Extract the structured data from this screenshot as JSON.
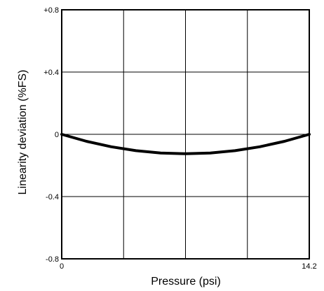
{
  "chart_data": {
    "type": "line",
    "xlabel": "Pressure (psi)",
    "ylabel": "Linearity deviation (%FS)",
    "xlim": [
      0,
      14.2
    ],
    "ylim": [
      -0.8,
      0.8
    ],
    "x_ticks": [
      {
        "value": 0,
        "label": "0"
      },
      {
        "value": 14.2,
        "label": "14.2"
      }
    ],
    "y_ticks": [
      {
        "value": 0.8,
        "label": "+0.8"
      },
      {
        "value": 0.4,
        "label": "+0.4"
      },
      {
        "value": 0,
        "label": "0"
      },
      {
        "value": -0.4,
        "label": "-0.4"
      },
      {
        "value": -0.8,
        "label": "-0.8"
      }
    ],
    "grid": true,
    "x_grid_values": [
      3.55,
      7.1,
      10.65
    ],
    "y_grid_values": [
      0.4,
      0,
      -0.4
    ],
    "series": [
      {
        "color": "#000000",
        "x": [
          0,
          1.42,
          2.84,
          4.26,
          5.68,
          7.1,
          8.52,
          9.94,
          11.36,
          12.78,
          14.2
        ],
        "y": [
          0,
          -0.045,
          -0.08,
          -0.105,
          -0.12,
          -0.125,
          -0.12,
          -0.105,
          -0.08,
          -0.045,
          0
        ]
      }
    ]
  }
}
